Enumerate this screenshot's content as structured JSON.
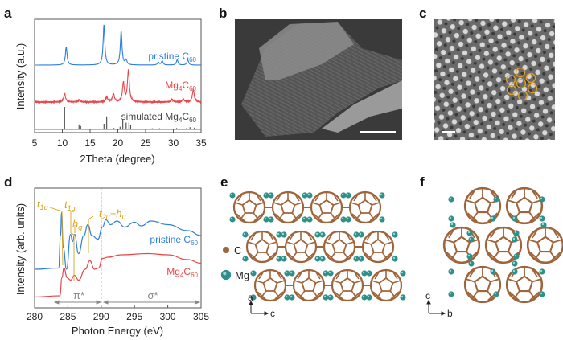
{
  "panel_labels": [
    "a",
    "b",
    "c",
    "d",
    "e",
    "f"
  ],
  "colors": {
    "pristine": "#2f7fe0",
    "mg4c60": "#e8474a",
    "simulated": "#333333",
    "annotation": "#d9a21b",
    "mg_atom": "#2f8f8a",
    "c_atom": "#a0643a"
  },
  "chart_data": [
    {
      "type": "line",
      "panel": "a",
      "xlabel": "2Theta (degree)",
      "ylabel": "Intensity (a.u.)",
      "xlim": [
        5,
        35
      ],
      "xticks": [
        "5",
        "10",
        "15",
        "20",
        "25",
        "30",
        "35"
      ],
      "series": [
        {
          "name": "pristine C",
          "sub": "60",
          "peaks": [
            [
              10.7,
              0.45
            ],
            [
              17.5,
              1.0
            ],
            [
              20.6,
              0.85
            ],
            [
              21.5,
              0.12
            ],
            [
              27.3,
              0.07
            ],
            [
              28.0,
              0.1
            ],
            [
              30.7,
              0.13
            ],
            [
              32.6,
              0.13
            ]
          ]
        },
        {
          "name": "Mg",
          "sub1": "4",
          "mid": "C",
          "sub": "60",
          "peaks": [
            [
              10.4,
              0.2
            ],
            [
              13.0,
              0.05
            ],
            [
              18.0,
              0.12
            ],
            [
              19.2,
              0.2
            ],
            [
              21.0,
              0.45
            ],
            [
              21.9,
              0.75
            ],
            [
              29.8,
              0.06
            ],
            [
              31.8,
              0.07
            ],
            [
              33.6,
              0.3
            ]
          ]
        },
        {
          "name": "simulated Mg",
          "sub1": "4",
          "mid": "C",
          "sub": "60",
          "sticks": [
            [
              10.4,
              1.0
            ],
            [
              11.0,
              0.05
            ],
            [
              13.0,
              0.22
            ],
            [
              13.3,
              0.15
            ],
            [
              17.5,
              0.25
            ],
            [
              18.0,
              0.58
            ],
            [
              19.3,
              0.06
            ],
            [
              20.4,
              0.12
            ],
            [
              20.9,
              0.45
            ],
            [
              21.5,
              0.3
            ],
            [
              22.0,
              0.3
            ],
            [
              22.3,
              0.2
            ],
            [
              26.2,
              0.05
            ],
            [
              27.5,
              0.05
            ],
            [
              28.7,
              0.15
            ],
            [
              30.6,
              0.06
            ],
            [
              32.4,
              0.06
            ],
            [
              33.0,
              0.1
            ],
            [
              33.8,
              0.08
            ]
          ]
        }
      ]
    },
    {
      "type": "line",
      "panel": "d",
      "xlabel": "Photon Energy (eV)",
      "ylabel": "Intensity (arb. units)",
      "xlim": [
        280,
        305
      ],
      "xticks": [
        "280",
        "285",
        "290",
        "295",
        "300",
        "305"
      ],
      "vline": 290,
      "series": [
        {
          "name": "pristine C",
          "sub": "60",
          "points": [
            [
              280,
              0.32
            ],
            [
              283.6,
              0.33
            ],
            [
              283.9,
              0.6
            ],
            [
              284.05,
              0.79
            ],
            [
              284.3,
              0.5
            ],
            [
              284.8,
              0.32
            ],
            [
              285.4,
              0.61
            ],
            [
              285.7,
              0.55
            ],
            [
              286.0,
              0.61
            ],
            [
              286.6,
              0.45
            ],
            [
              287.4,
              0.6
            ],
            [
              288.0,
              0.69
            ],
            [
              288.6,
              0.6
            ],
            [
              289.5,
              0.57
            ],
            [
              290.2,
              0.67
            ],
            [
              290.7,
              0.73
            ],
            [
              291.4,
              0.69
            ],
            [
              292.4,
              0.72
            ],
            [
              293.5,
              0.67
            ],
            [
              295.0,
              0.71
            ],
            [
              296.0,
              0.68
            ],
            [
              297.5,
              0.72
            ],
            [
              300,
              0.69
            ],
            [
              303,
              0.64
            ],
            [
              305,
              0.6
            ]
          ]
        },
        {
          "name": "Mg",
          "sub1": "4",
          "mid": "C",
          "sub": "60",
          "points": [
            [
              280,
              0.09
            ],
            [
              283.8,
              0.1
            ],
            [
              284.1,
              0.25
            ],
            [
              284.4,
              0.33
            ],
            [
              284.9,
              0.25
            ],
            [
              285.4,
              0.23
            ],
            [
              286.0,
              0.27
            ],
            [
              286.6,
              0.23
            ],
            [
              287.6,
              0.32
            ],
            [
              288.3,
              0.39
            ],
            [
              289.0,
              0.32
            ],
            [
              289.6,
              0.33
            ],
            [
              290.2,
              0.41
            ],
            [
              291,
              0.42
            ],
            [
              293,
              0.44
            ],
            [
              297,
              0.45
            ],
            [
              300,
              0.44
            ],
            [
              303,
              0.4
            ],
            [
              305,
              0.37
            ]
          ]
        }
      ],
      "annotations": [
        {
          "main": "t",
          "sub": "1u"
        },
        {
          "main": "t",
          "sub": "1g"
        },
        {
          "main": "h",
          "sub": "g"
        },
        {
          "main": "t",
          "sub": "2u",
          "plus": "+h",
          "sub2": "u"
        }
      ],
      "regions": [
        {
          "label": "π*"
        },
        {
          "label": "σ*"
        }
      ]
    }
  ],
  "panel_e": {
    "legend": [
      {
        "label": "C"
      },
      {
        "label": "Mg"
      }
    ],
    "axes": {
      "up": "a",
      "right": "c"
    }
  },
  "panel_f": {
    "axes": {
      "up": "c",
      "right": "b"
    }
  }
}
